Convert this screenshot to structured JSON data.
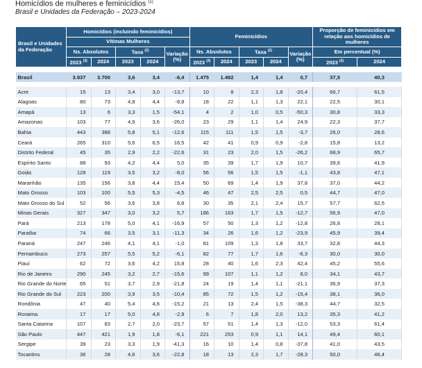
{
  "title": "Homicídios de mulheres e feminicídios",
  "title_note": "(1)",
  "subtitle": "Brasil e Unidades da Federação –  2023-2024",
  "header": {
    "row_label": "Brasil e Unidades da Federação",
    "groups": [
      "Homicídios (incluindo feminicídios)",
      "Feminicídios",
      "Proporção de feminicídios em relação aos homicídios de mulheres"
    ],
    "subgroup": "Vítimas Mulheres",
    "measures": [
      [
        "Ns. Absolutos"
      ],
      [
        "Taxa",
        "(2)"
      ],
      [
        "Variação (%)"
      ],
      [
        "Ns. Absolutos"
      ],
      [
        "Taxa",
        "(2)"
      ],
      [
        "Variação (%)"
      ],
      [
        "Em percentual (%)"
      ]
    ],
    "years": [
      [
        "2023",
        "(3)"
      ],
      [
        "2024"
      ],
      [
        "2023"
      ],
      [
        "2024"
      ],
      [
        "2023",
        "(3)"
      ],
      [
        "2024"
      ],
      [
        "2023"
      ],
      [
        "2024"
      ],
      [
        "2023",
        "(3)"
      ],
      [
        "2024"
      ]
    ]
  },
  "table": {
    "total": [
      "Brasil",
      "3.937",
      "3.700",
      "3,6",
      "3,4",
      "-6,4",
      "1.475",
      "1.492",
      "1,4",
      "1,4",
      "0,7",
      "37,5",
      "40,3"
    ],
    "rows": [
      [
        "Acre",
        "15",
        "13",
        "3,4",
        "3,0",
        "-13,7",
        "10",
        "8",
        "2,3",
        "1,8",
        "-20,4",
        "66,7",
        "61,5"
      ],
      [
        "Alagoas",
        "80",
        "73",
        "4,8",
        "4,4",
        "-8,8",
        "18",
        "22",
        "1,1",
        "1,3",
        "22,1",
        "22,5",
        "30,1"
      ],
      [
        "Amapá",
        "13",
        "6",
        "3,3",
        "1,5",
        "-54,1",
        "4",
        "2",
        "1,0",
        "0,5",
        "-50,3",
        "30,8",
        "33,3"
      ],
      [
        "Amazonas",
        "103",
        "77",
        "4,9",
        "3,6",
        "-26,0",
        "23",
        "29",
        "1,1",
        "1,4",
        "24,9",
        "22,3",
        "37,7"
      ],
      [
        "Bahia",
        "443",
        "388",
        "5,8",
        "5,1",
        "-12,6",
        "115",
        "111",
        "1,5",
        "1,5",
        "-3,7",
        "26,0",
        "28,6"
      ],
      [
        "Ceará",
        "265",
        "310",
        "5,6",
        "6,5",
        "16,5",
        "42",
        "41",
        "0,9",
        "0,9",
        "-2,8",
        "15,8",
        "13,2"
      ],
      [
        "Distrito Federal",
        "45",
        "35",
        "2,9",
        "2,2",
        "-22,6",
        "31",
        "23",
        "2,0",
        "1,5",
        "-26,2",
        "68,9",
        "65,7"
      ],
      [
        "Espírito Santo",
        "88",
        "93",
        "4,2",
        "4,4",
        "5,0",
        "35",
        "39",
        "1,7",
        "1,9",
        "10,7",
        "39,8",
        "41,9"
      ],
      [
        "Goiás",
        "128",
        "119",
        "3,5",
        "3,2",
        "-8,0",
        "56",
        "56",
        "1,5",
        "1,5",
        "-1,1",
        "43,8",
        "47,1"
      ],
      [
        "Maranhão",
        "135",
        "156",
        "3,8",
        "4,4",
        "15,4",
        "50",
        "69",
        "1,4",
        "1,9",
        "37,8",
        "37,0",
        "44,2"
      ],
      [
        "Mato Grosso",
        "103",
        "100",
        "5,5",
        "5,3",
        "-4,5",
        "46",
        "47",
        "2,5",
        "2,5",
        "0,5",
        "44,7",
        "47,0"
      ],
      [
        "Mato Grosso do Sul",
        "52",
        "56",
        "3,6",
        "3,8",
        "6,8",
        "30",
        "35",
        "2,1",
        "2,4",
        "15,7",
        "57,7",
        "62,5"
      ],
      [
        "Minas Gerais",
        "327",
        "347",
        "3,0",
        "3,2",
        "5,7",
        "186",
        "163",
        "1,7",
        "1,5",
        "-12,7",
        "56,9",
        "47,0"
      ],
      [
        "Pará",
        "213",
        "178",
        "5,0",
        "4,1",
        "-16,9",
        "57",
        "50",
        "1,3",
        "1,2",
        "-12,8",
        "26,8",
        "28,1"
      ],
      [
        "Paraíba",
        "74",
        "66",
        "3,5",
        "3,1",
        "-11,3",
        "34",
        "26",
        "1,6",
        "1,2",
        "-23,9",
        "45,9",
        "39,4"
      ],
      [
        "Paraná",
        "247",
        "246",
        "4,1",
        "4,1",
        "-1,0",
        "81",
        "109",
        "1,3",
        "1,8",
        "33,7",
        "32,8",
        "44,3"
      ],
      [
        "Pernambuco",
        "273",
        "257",
        "5,5",
        "5,2",
        "-6,1",
        "82",
        "77",
        "1,7",
        "1,6",
        "-6,3",
        "30,0",
        "30,0"
      ],
      [
        "Piauí",
        "62",
        "72",
        "3,6",
        "4,2",
        "15,8",
        "28",
        "40",
        "1,6",
        "2,3",
        "42,4",
        "45,2",
        "55,6"
      ],
      [
        "Rio de Janeiro",
        "290",
        "245",
        "3,2",
        "2,7",
        "-15,6",
        "99",
        "107",
        "1,1",
        "1,2",
        "8,0",
        "34,1",
        "43,7"
      ],
      [
        "Rio Grande do Norte",
        "65",
        "51",
        "3,7",
        "2,9",
        "-21,8",
        "24",
        "19",
        "1,4",
        "1,1",
        "-21,1",
        "36,9",
        "37,3"
      ],
      [
        "Rio Grande do Sul",
        "223",
        "200",
        "3,9",
        "3,5",
        "-10,4",
        "85",
        "72",
        "1,5",
        "1,2",
        "-15,4",
        "38,1",
        "36,0"
      ],
      [
        "Rondônia",
        "47",
        "40",
        "5,4",
        "4,6",
        "-15,2",
        "21",
        "13",
        "2,4",
        "1,5",
        "-38,3",
        "44,7",
        "32,5"
      ],
      [
        "Roraima",
        "17",
        "17",
        "5,0",
        "4,8",
        "-2,9",
        "6",
        "7",
        "1,8",
        "2,0",
        "13,2",
        "35,3",
        "41,2"
      ],
      [
        "Santa Catarina",
        "107",
        "83",
        "2,7",
        "2,0",
        "-23,7",
        "57",
        "51",
        "1,4",
        "1,3",
        "-12,0",
        "53,3",
        "61,4"
      ],
      [
        "São Paulo",
        "447",
        "421",
        "1,9",
        "1,8",
        "-6,1",
        "221",
        "253",
        "0,9",
        "1,1",
        "14,1",
        "49,4",
        "60,1"
      ],
      [
        "Sergipe",
        "39",
        "23",
        "3,3",
        "1,9",
        "-41,3",
        "16",
        "10",
        "1,4",
        "0,8",
        "-37,8",
        "41,0",
        "43,5"
      ],
      [
        "Tocantins",
        "36",
        "28",
        "4,6",
        "3,6",
        "-22,8",
        "18",
        "13",
        "2,3",
        "1,7",
        "-28,3",
        "50,0",
        "46,4"
      ]
    ]
  }
}
